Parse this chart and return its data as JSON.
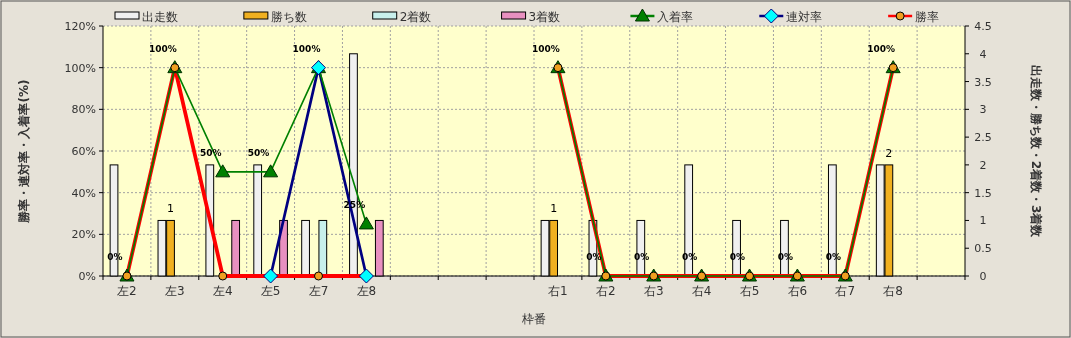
{
  "chart_data": {
    "type": "bar",
    "xlabel": "枠番",
    "ylabel": "勝率・連対率・入着率(%)",
    "y2label": "出走数・勝ち数・2着数・3着数",
    "categories": [
      "左2",
      "左3",
      "左4",
      "左5",
      "左7",
      "左8",
      null,
      null,
      null,
      "右1",
      "右2",
      "右3",
      "右4",
      "右5",
      "右6",
      "右7",
      "右8",
      null
    ],
    "ylim": [
      0,
      120
    ],
    "yticks": [
      {
        "value": 0,
        "label": "0%"
      },
      {
        "value": 20,
        "label": "20%"
      },
      {
        "value": 40,
        "label": "40%"
      },
      {
        "value": 60,
        "label": "60%"
      },
      {
        "value": 80,
        "label": "80%"
      },
      {
        "value": 100,
        "label": "100%"
      },
      {
        "value": 120,
        "label": "120%"
      }
    ],
    "y2lim": [
      0,
      4.5
    ],
    "y2ticks": [
      0,
      0.5,
      1,
      1.5,
      2,
      2.5,
      3,
      3.5,
      4,
      4.5
    ],
    "grid": true,
    "legend": "top",
    "series": [
      {
        "name": "出走数",
        "axis": "y2",
        "color": "#f0f0f0",
        "values": [
          2,
          1,
          2,
          2,
          1,
          4,
          null,
          null,
          null,
          1,
          1,
          1,
          2,
          1,
          1,
          2,
          2,
          null
        ]
      },
      {
        "name": "勝ち数",
        "axis": "y2",
        "color": "#f0b020",
        "values": [
          0,
          1,
          0,
          0,
          0,
          0,
          null,
          null,
          null,
          1,
          0,
          0,
          0,
          0,
          0,
          0,
          2,
          null
        ],
        "value_labels": [
          null,
          "1",
          null,
          null,
          null,
          null,
          null,
          null,
          null,
          "1",
          null,
          null,
          null,
          null,
          null,
          null,
          "2",
          null
        ]
      },
      {
        "name": "2着数",
        "axis": "y2",
        "color": "#c8f0ec",
        "values": [
          0,
          0,
          0,
          0,
          1,
          0,
          null,
          null,
          null,
          0,
          0,
          0,
          0,
          0,
          0,
          0,
          0,
          null
        ]
      },
      {
        "name": "3着数",
        "axis": "y2",
        "color": "#e890c0",
        "values": [
          0,
          0,
          1,
          1,
          0,
          1,
          null,
          null,
          null,
          0,
          0,
          0,
          0,
          0,
          0,
          0,
          0,
          null
        ]
      },
      {
        "name": "入着率",
        "type": "line",
        "color": "#008000",
        "marker": "triangle",
        "values": [
          0,
          100,
          50,
          50,
          100,
          25,
          null,
          null,
          null,
          100,
          0,
          0,
          0,
          0,
          0,
          0,
          100,
          null
        ],
        "value_labels": [
          "0%",
          "100%",
          "50%",
          "50%",
          "100%",
          "25%",
          null,
          null,
          null,
          "100%",
          "0%",
          "0%",
          "0%",
          "0%",
          "0%",
          "0%",
          "100%",
          null
        ]
      },
      {
        "name": "連対率",
        "type": "line",
        "color": "#000080",
        "marker": "diamond",
        "values": [
          null,
          null,
          null,
          0,
          100,
          0,
          null,
          null,
          null,
          null,
          null,
          null,
          null,
          null,
          null,
          null,
          null,
          null
        ]
      },
      {
        "name": "勝率",
        "type": "line",
        "color": "#ff0000",
        "marker": "circle",
        "values": [
          0,
          100,
          0,
          0,
          0,
          0,
          null,
          null,
          null,
          100,
          0,
          0,
          0,
          0,
          0,
          0,
          100,
          null
        ]
      }
    ]
  }
}
